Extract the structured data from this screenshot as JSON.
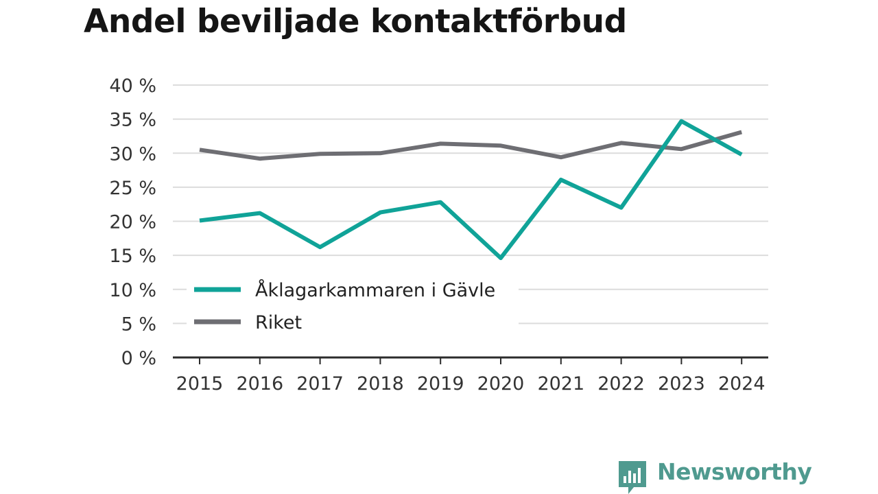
{
  "title": "Andel beviljade kontaktförbud",
  "brand": {
    "name": "Newsworthy",
    "color": "#4f9a8f",
    "icon": "chart-bubble-icon"
  },
  "colors": {
    "series1": "#10a398",
    "series2": "#6e6e73",
    "grid": "#dcdcdc",
    "axis": "#2b2b2b"
  },
  "chart_data": {
    "type": "line",
    "x": [
      "2015",
      "2016",
      "2017",
      "2018",
      "2019",
      "2020",
      "2021",
      "2022",
      "2023",
      "2024"
    ],
    "series": [
      {
        "name": "Åklagarkammaren i Gävle",
        "values": [
          20.1,
          21.2,
          16.2,
          21.3,
          22.8,
          14.6,
          26.1,
          22.0,
          34.7,
          29.8
        ]
      },
      {
        "name": "Riket",
        "values": [
          30.5,
          29.2,
          29.9,
          30.0,
          31.4,
          31.1,
          29.4,
          31.5,
          30.6,
          33.1
        ]
      }
    ],
    "y_ticks": [
      "0 %",
      "5 %",
      "10 %",
      "15 %",
      "20 %",
      "25 %",
      "30 %",
      "35 %",
      "40 %"
    ],
    "ylim": [
      0,
      40
    ],
    "grid": true,
    "legend_position": "bottom-left"
  }
}
